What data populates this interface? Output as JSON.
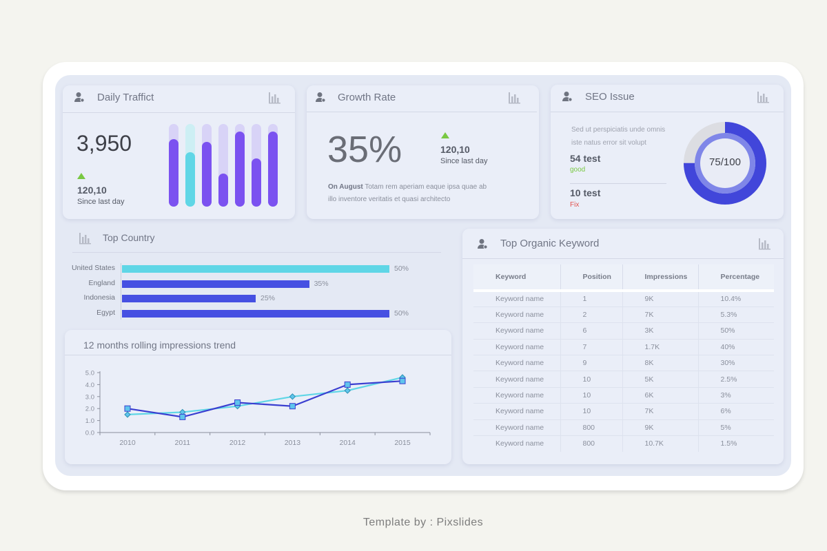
{
  "daily_traffic": {
    "title": "Daily Traffict",
    "value": "3,950",
    "change": "120,10",
    "change_label": "Since last day",
    "bar_levels": [
      0.82,
      0.66,
      0.78,
      0.4,
      0.91,
      0.58,
      0.91
    ],
    "bar_colors": [
      "#7b52f0",
      "#5fd6e6",
      "#7b52f0",
      "#7b52f0",
      "#7b52f0",
      "#7b52f0",
      "#7b52f0"
    ]
  },
  "growth_rate": {
    "title": "Growth Rate",
    "value": "35%",
    "change": "120,10",
    "change_label": "Since last day",
    "note_bold": "On August",
    "note_line1": "Totam rem aperiam eaque ipsa quae ab",
    "note_line2": "illo inventore veritatis et quasi architecto"
  },
  "seo_issue": {
    "title": "SEO Issue",
    "desc_line1": "Sed ut perspiciatis unde omnis",
    "desc_line2": "iste natus error sit volupt",
    "good_value": "54 test",
    "good_label": "good",
    "fix_value": "10 test",
    "fix_label": "Fix",
    "score": "75/100",
    "score_fraction": 0.75
  },
  "top_country": {
    "title": "Top Country",
    "countries": [
      {
        "name": "United States",
        "value": 50,
        "label": "50%",
        "color": "#5fd6e6"
      },
      {
        "name": "England",
        "value": 35,
        "label": "35%",
        "color": "#4650e2"
      },
      {
        "name": "Indonesia",
        "value": 25,
        "label": "25%",
        "color": "#4650e2"
      },
      {
        "name": "Egypt",
        "value": 50,
        "label": "50%",
        "color": "#4650e2"
      }
    ]
  },
  "trend": {
    "title": "12 months rolling impressions trend"
  },
  "chart_data": {
    "type": "line",
    "x": [
      "2010",
      "2011",
      "2012",
      "2013",
      "2014",
      "2015"
    ],
    "y_ticks": [
      "0.0",
      "1.0",
      "2.0",
      "3.0",
      "4.0",
      "5.0"
    ],
    "ylim": [
      0,
      5
    ],
    "series": [
      {
        "values": [
          1.5,
          1.7,
          2.2,
          3.0,
          3.5,
          4.6
        ],
        "color": "#5fd6e6",
        "marker": "diamond"
      },
      {
        "values": [
          2.0,
          1.3,
          2.5,
          2.2,
          4.0,
          4.3
        ],
        "color": "#3a3ed0",
        "marker": "square"
      }
    ]
  },
  "keywords": {
    "title": "Top Organic Keyword",
    "headers": [
      "Keyword",
      "Position",
      "Impressions",
      "Percentage"
    ],
    "rows": [
      [
        "Keyword name",
        "1",
        "9K",
        "10.4%"
      ],
      [
        "Keyword name",
        "2",
        "7K",
        "5.3%"
      ],
      [
        "Keyword name",
        "6",
        "3K",
        "50%"
      ],
      [
        "Keyword name",
        "7",
        "1.7K",
        "40%"
      ],
      [
        "Keyword name",
        "9",
        "8K",
        "30%"
      ],
      [
        "Keyword name",
        "10",
        "5K",
        "2.5%"
      ],
      [
        "Keyword name",
        "10",
        "6K",
        "3%"
      ],
      [
        "Keyword name",
        "10",
        "7K",
        "6%"
      ],
      [
        "Keyword name",
        "800",
        "9K",
        "5%"
      ],
      [
        "Keyword name",
        "800",
        "10.7K",
        "1.5%"
      ]
    ]
  },
  "footer": "Template by : Pixslides"
}
